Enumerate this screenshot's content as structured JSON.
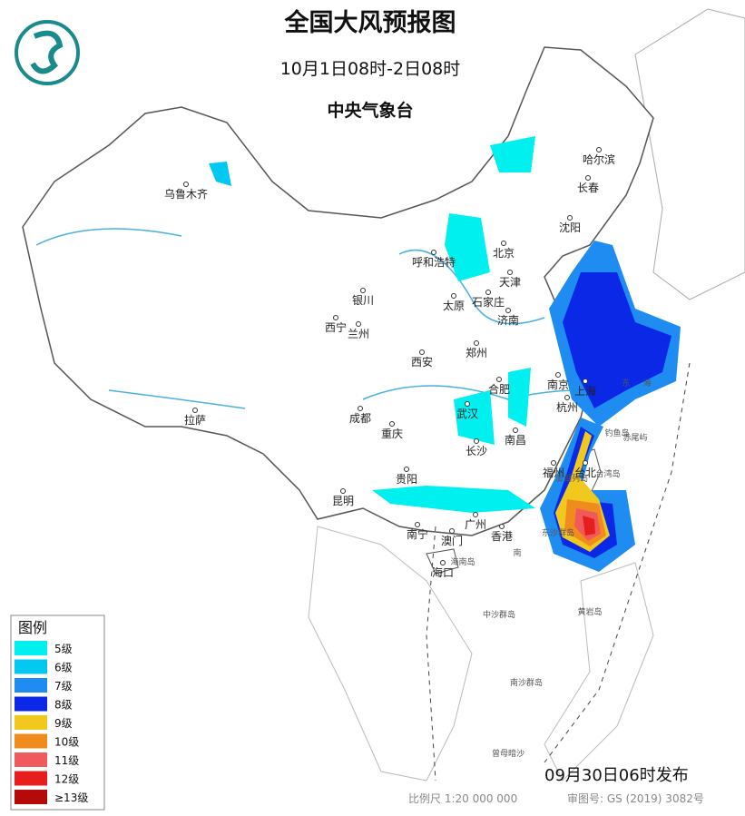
{
  "header": {
    "title": "全国大风预报图",
    "subtitle": "10月1日08时-2日08时",
    "agency": "中央气象台"
  },
  "legend": {
    "title": "图例",
    "items": [
      {
        "label": "5级",
        "color": "#00f0f0"
      },
      {
        "label": "6级",
        "color": "#00c8f0"
      },
      {
        "label": "7级",
        "color": "#1e8cf0"
      },
      {
        "label": "8级",
        "color": "#0a28e6"
      },
      {
        "label": "9级",
        "color": "#f0c81e"
      },
      {
        "label": "10级",
        "color": "#f08c1e"
      },
      {
        "label": "11级",
        "color": "#f05a5a"
      },
      {
        "label": "12级",
        "color": "#e61e1e"
      },
      {
        "label": "≥13级",
        "color": "#b40a0a"
      }
    ]
  },
  "cities": [
    "乌鲁木齐",
    "哈尔滨",
    "长春",
    "沈阳",
    "北京",
    "天津",
    "呼和浩特",
    "石家庄",
    "太原",
    "济南",
    "银川",
    "西宁",
    "兰州",
    "郑州",
    "西安",
    "合肥",
    "南京",
    "上海",
    "杭州",
    "武汉",
    "成都",
    "重庆",
    "拉萨",
    "南昌",
    "长沙",
    "福州",
    "台北",
    "贵阳",
    "昆明",
    "南宁",
    "广州",
    "澳门",
    "香港",
    "海口"
  ],
  "places": [
    "钓鱼岛",
    "赤尾屿",
    "台湾岛",
    "澎湖列岛",
    "东沙群岛",
    "海南岛",
    "中沙群岛",
    "黄岩岛",
    "南沙群岛",
    "曾母暗沙",
    "南",
    "东",
    "海"
  ],
  "footer": {
    "issued": "09月30日06时发布",
    "scale": "比例尺 1:20 000 000",
    "approval": "审图号: GS (2019) 3082号"
  }
}
